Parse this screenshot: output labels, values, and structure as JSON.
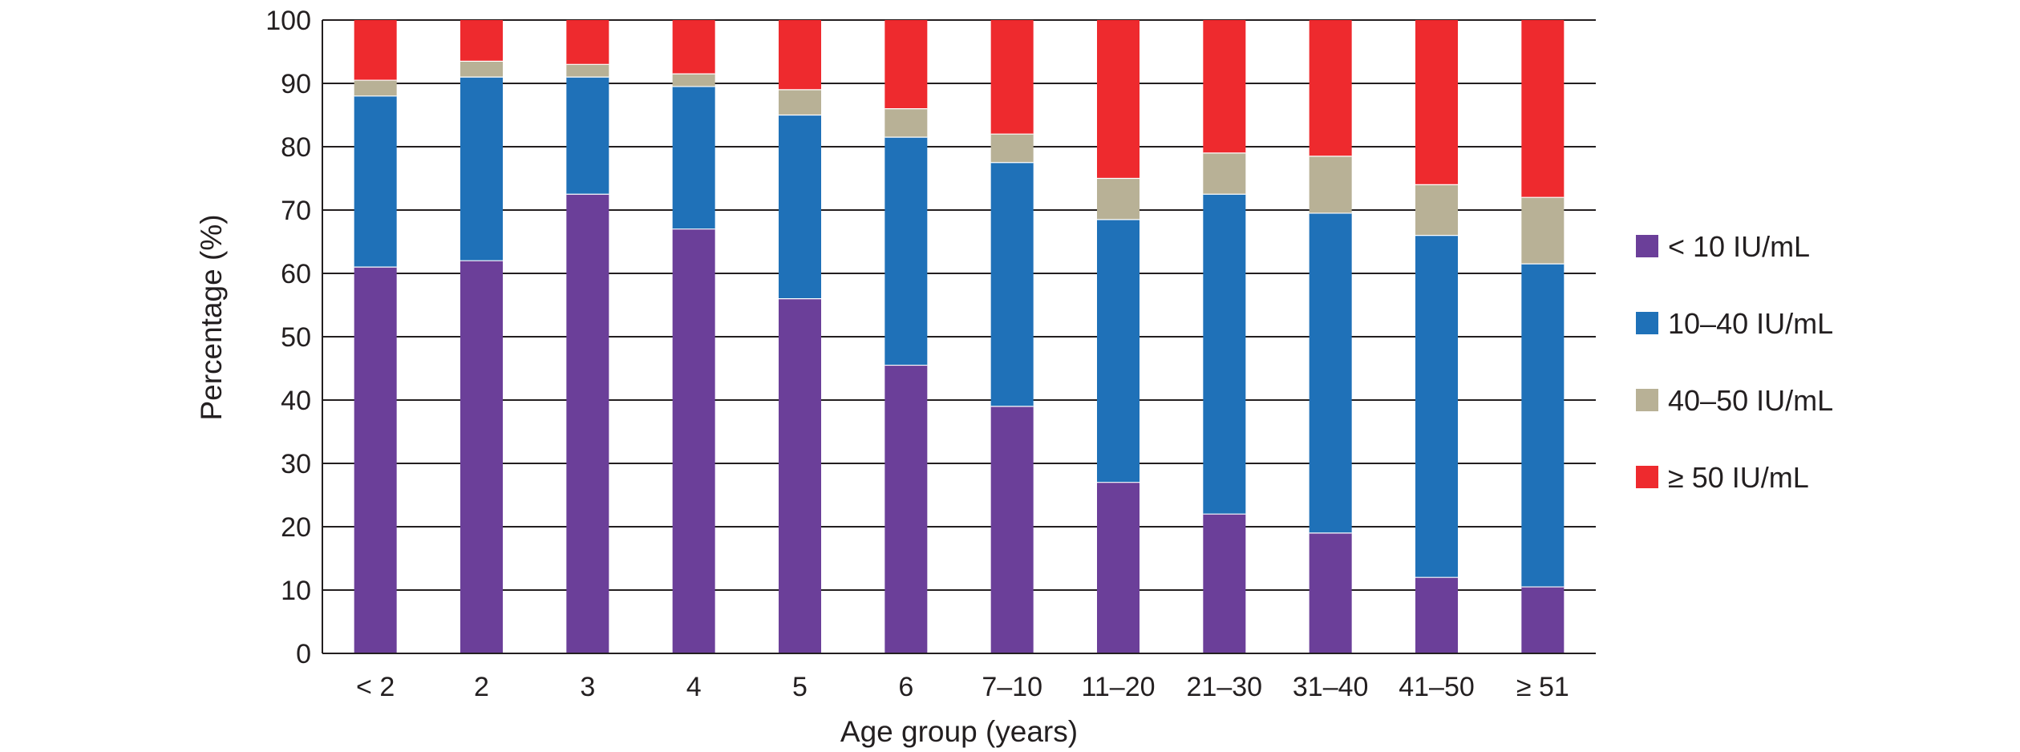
{
  "chart_data": {
    "type": "bar",
    "stacked": true,
    "xlabel": "Age group (years)",
    "ylabel": "Percentage (%)",
    "ylim": [
      0,
      100
    ],
    "yticks": [
      0,
      10,
      20,
      30,
      40,
      50,
      60,
      70,
      80,
      90,
      100
    ],
    "grid": "horizontal",
    "legend_position": "right",
    "categories": [
      "< 2",
      "2",
      "3",
      "4",
      "5",
      "6",
      "7–10",
      "11–20",
      "21–30",
      "31–40",
      "41–50",
      "≥ 51"
    ],
    "series": [
      {
        "name": "< 10 IU/mL",
        "color": "#6b3f99",
        "values": [
          61,
          62,
          72.5,
          67,
          56,
          45.5,
          39,
          27,
          22,
          19,
          12,
          10.5
        ]
      },
      {
        "name": "10–40 IU/mL",
        "color": "#1f71b8",
        "values": [
          27,
          29,
          18.5,
          22.5,
          29,
          36,
          38.5,
          41.5,
          50.5,
          50.5,
          54,
          51
        ]
      },
      {
        "name": "40–50 IU/mL",
        "color": "#b8b196",
        "values": [
          2.5,
          2.5,
          2,
          2,
          4,
          4.5,
          4.5,
          6.5,
          6.5,
          9,
          8,
          10.5
        ]
      },
      {
        "name": "≥ 50 IU/mL",
        "color": "#ee2a2e",
        "values": [
          9.5,
          6.5,
          7,
          8.5,
          11,
          14,
          18,
          25,
          21,
          21.5,
          26,
          28
        ]
      }
    ]
  }
}
